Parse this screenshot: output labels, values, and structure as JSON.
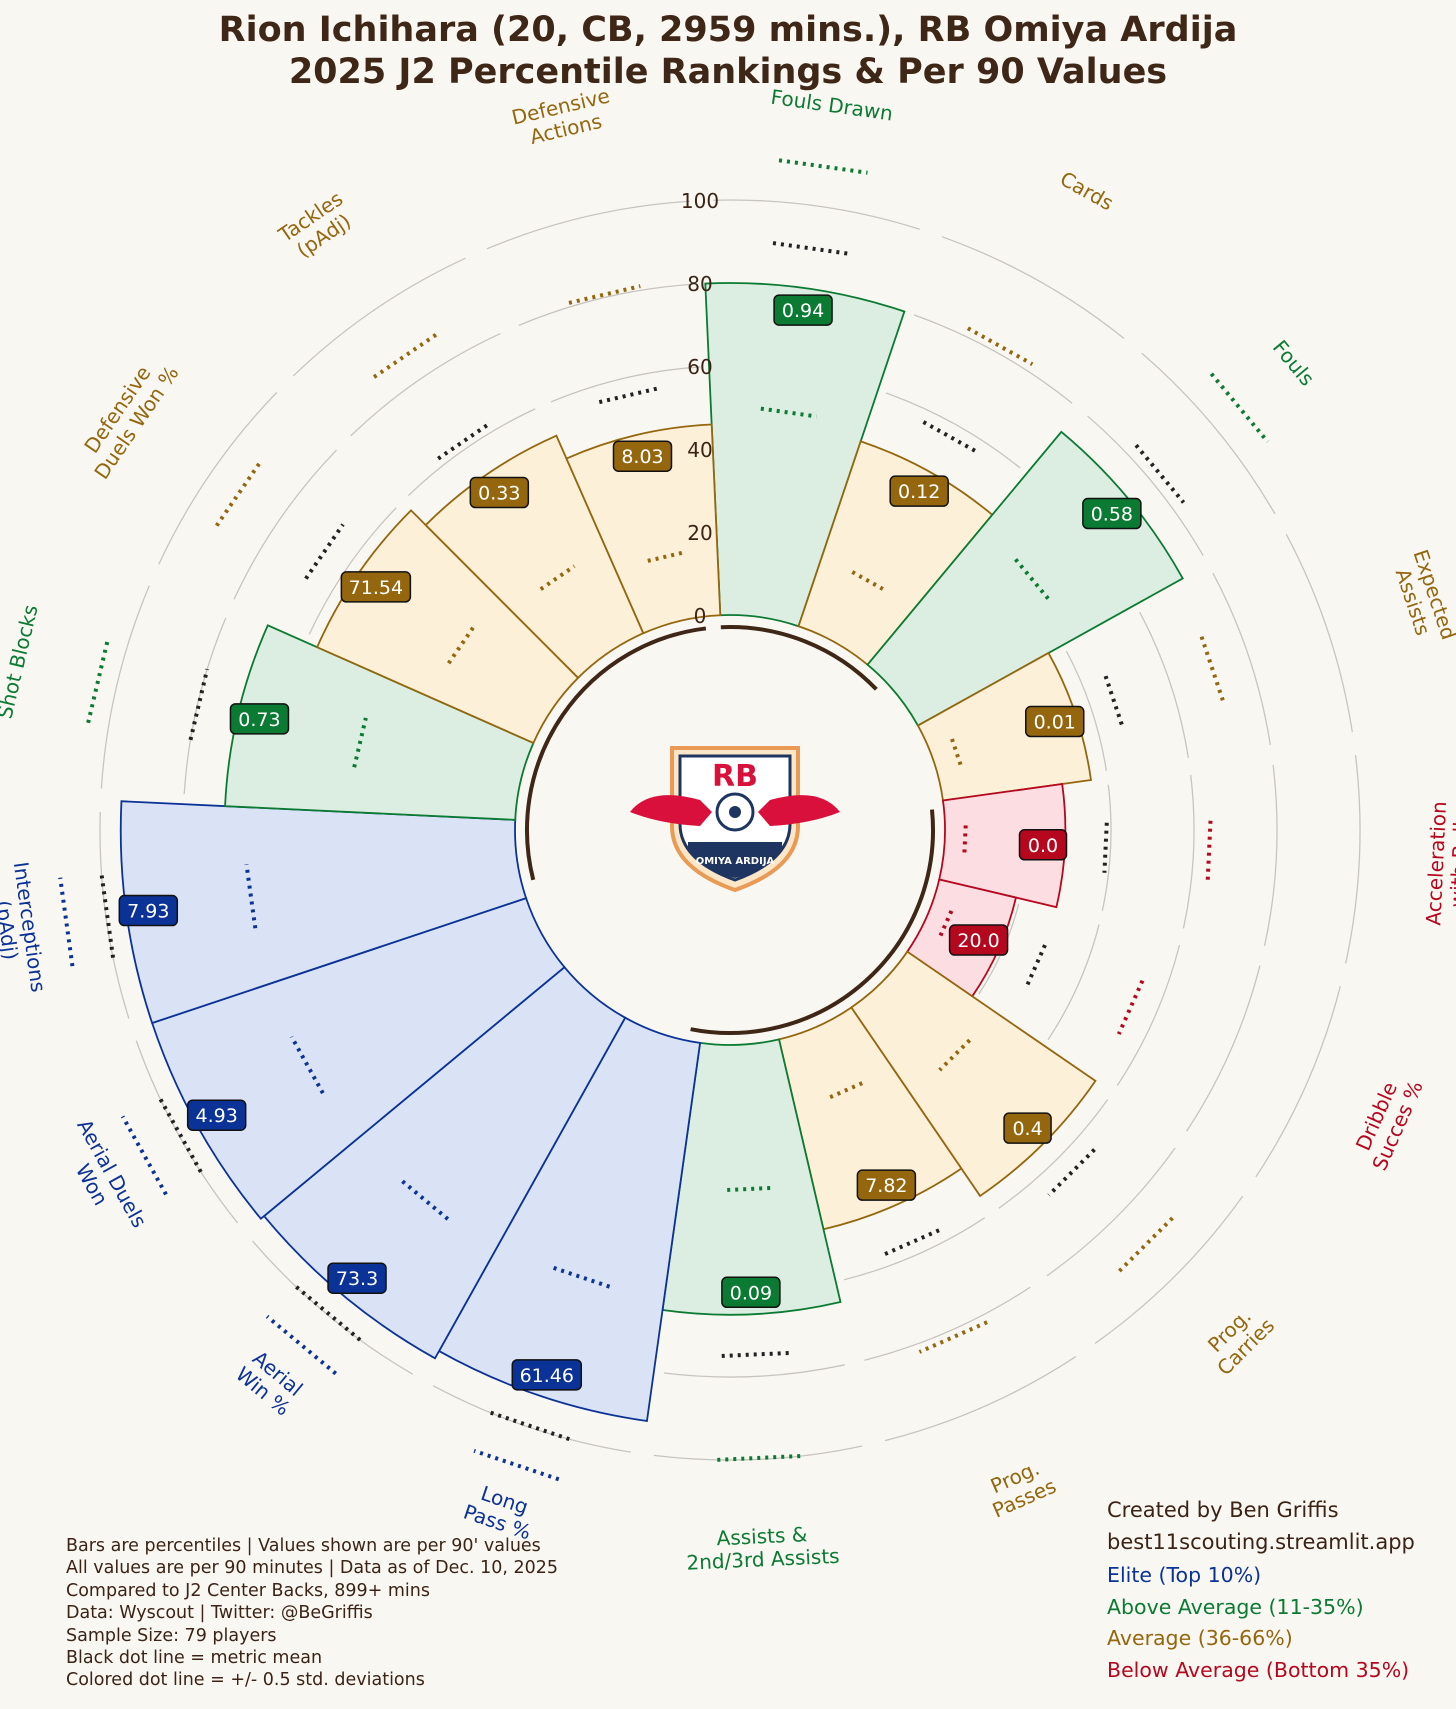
{
  "title_line1": "Rion Ichihara (20, CB, 2959 mins.), RB Omiya Ardija",
  "title_line2": "2025 J2 Percentile Rankings & Per 90 Values",
  "logo": {
    "text_top": "RB",
    "text_bottom": "OMIYA ARDIJA"
  },
  "notes": [
    "Bars are percentiles | Values shown are per 90' values",
    "All values are per 90 minutes | Data as of Dec. 10, 2025",
    "Compared to J2 Center Backs, 899+ mins",
    "Data: Wyscout | Twitter: @BeGriffis",
    "Sample Size: 79 players",
    "Black dot line = metric mean",
    "Colored dot line = +/- 0.5 std. deviations"
  ],
  "credits": [
    "Created by Ben Griffis",
    "best11scouting.streamlit.app"
  ],
  "legend": [
    {
      "label": "Elite (Top 10%)",
      "color": "#0b3296"
    },
    {
      "label": "Above Average (11-35%)",
      "color": "#0b7a32"
    },
    {
      "label": "Average (36-66%)",
      "color": "#94670f"
    },
    {
      "label": "Below Average (Bottom 35%)",
      "color": "#b5081e"
    }
  ],
  "colors": {
    "elite": {
      "fill": "#d9e3f5",
      "edge": "#0b3296",
      "box": "#0b3296"
    },
    "above": {
      "fill": "#dbeee1",
      "edge": "#0b7a32",
      "box": "#0b7a32"
    },
    "average": {
      "fill": "#fdf0d9",
      "edge": "#94670f",
      "box": "#94670f"
    },
    "below": {
      "fill": "#fcdde2",
      "edge": "#b5081e",
      "box": "#b5081e"
    }
  },
  "chart_data": {
    "type": "radial-bar",
    "rlim": [
      0,
      100
    ],
    "radial_ticks": [
      0,
      20,
      40,
      60,
      80,
      100
    ],
    "metrics": [
      {
        "label": "Fouls Drawn",
        "percentile": 80,
        "value": "0.94",
        "tier": "above"
      },
      {
        "label": "Cards",
        "percentile": 47,
        "value": "0.12",
        "tier": "average"
      },
      {
        "label": "Fouls",
        "percentile": 73,
        "value": "0.58",
        "tier": "above"
      },
      {
        "label": "Expected\nAssists",
        "percentile": 36,
        "value": "0.01",
        "tier": "average"
      },
      {
        "label": "Acceleration\nwith Ball",
        "percentile": 29,
        "value": "0.0",
        "tier": "below"
      },
      {
        "label": "Dribble\nSucces %",
        "percentile": 19,
        "value": "20.0",
        "tier": "below"
      },
      {
        "label": "Prog.\nCarries",
        "percentile": 55,
        "value": "0.4",
        "tier": "average"
      },
      {
        "label": "Prog.\nPasses",
        "percentile": 47,
        "value": "7.82",
        "tier": "average"
      },
      {
        "label": "Assists &\n2nd/3rd Assists",
        "percentile": 65,
        "value": "0.09",
        "tier": "above"
      },
      {
        "label": "Long\nPass %",
        "percentile": 92,
        "value": "61.46",
        "tier": "elite"
      },
      {
        "label": "Aerial\nWin %",
        "percentile": 94,
        "value": "73.3",
        "tier": "elite"
      },
      {
        "label": "Aerial Duels\nWon",
        "percentile": 95,
        "value": "4.93",
        "tier": "elite"
      },
      {
        "label": "Interceptions\n(pAdj)",
        "percentile": 95,
        "value": "7.93",
        "tier": "elite"
      },
      {
        "label": "Shot Blocks",
        "percentile": 70,
        "value": "0.73",
        "tier": "above"
      },
      {
        "label": "Defensive\nDuels Won %",
        "percentile": 57,
        "value": "71.54",
        "tier": "average"
      },
      {
        "label": "Tackles\n(pAdj)",
        "percentile": 52,
        "value": "0.33",
        "tier": "average"
      },
      {
        "label": "Defensive\nActions",
        "percentile": 46,
        "value": "8.03",
        "tier": "average"
      }
    ]
  }
}
